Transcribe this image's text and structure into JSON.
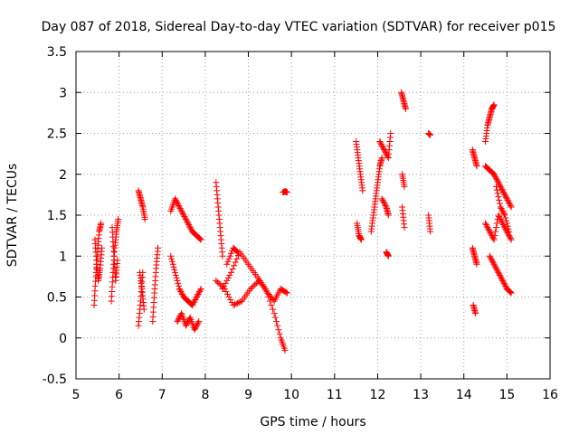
{
  "chart_data": {
    "type": "scatter",
    "title": "Day 087 of 2018, Sidereal Day-to-day VTEC variation (SDTVAR) for receiver p015",
    "xlabel": "GPS time / hours",
    "ylabel": "SDTVAR / TECUs",
    "xlim": [
      5,
      16
    ],
    "ylim": [
      -0.5,
      3.5
    ],
    "xticks": [
      "5",
      "6",
      "7",
      "8",
      "9",
      "10",
      "11",
      "12",
      "13",
      "14",
      "15",
      "16"
    ],
    "yticks": [
      "-0.5",
      "0",
      "0.5",
      "1",
      "1.5",
      "2",
      "2.5",
      "3",
      "3.5"
    ],
    "grid": true,
    "marker": "+",
    "series_color": "#ff0000",
    "segments": [
      {
        "x": [
          5.42,
          5.46,
          5.5,
          5.54,
          5.58
        ],
        "y": [
          0.4,
          0.75,
          1.05,
          1.3,
          1.4
        ]
      },
      {
        "x": [
          5.44,
          5.48,
          5.52,
          5.56,
          5.6
        ],
        "y": [
          1.2,
          0.9,
          0.7,
          0.85,
          1.1
        ]
      },
      {
        "x": [
          5.82,
          5.86,
          5.9,
          5.94,
          5.98
        ],
        "y": [
          0.45,
          0.8,
          1.1,
          1.3,
          1.45
        ]
      },
      {
        "x": [
          5.84,
          5.88,
          5.92,
          5.96
        ],
        "y": [
          1.35,
          1.0,
          0.7,
          0.95
        ]
      },
      {
        "x": [
          6.45,
          6.5,
          6.55,
          6.6
        ],
        "y": [
          1.8,
          1.7,
          1.6,
          1.45
        ]
      },
      {
        "x": [
          6.45,
          6.5,
          6.55
        ],
        "y": [
          0.15,
          0.45,
          0.8
        ]
      },
      {
        "x": [
          6.48,
          6.53,
          6.58
        ],
        "y": [
          0.8,
          0.6,
          0.35
        ]
      },
      {
        "x": [
          6.78,
          6.82,
          6.86,
          6.9
        ],
        "y": [
          0.2,
          0.55,
          0.85,
          1.1
        ]
      },
      {
        "x": [
          7.2,
          7.3,
          7.4,
          7.5,
          7.6,
          7.7,
          7.8,
          7.9
        ],
        "y": [
          1.55,
          1.7,
          1.6,
          1.5,
          1.4,
          1.3,
          1.25,
          1.2
        ]
      },
      {
        "x": [
          7.2,
          7.3,
          7.4,
          7.5,
          7.6,
          7.7,
          7.8,
          7.9
        ],
        "y": [
          1.0,
          0.8,
          0.6,
          0.5,
          0.45,
          0.4,
          0.5,
          0.6
        ]
      },
      {
        "x": [
          7.35,
          7.45,
          7.55,
          7.65,
          7.75,
          7.85
        ],
        "y": [
          0.2,
          0.3,
          0.15,
          0.25,
          0.1,
          0.2
        ]
      },
      {
        "x": [
          8.25,
          8.3,
          8.35,
          8.4
        ],
        "y": [
          1.9,
          1.6,
          1.3,
          1.0
        ]
      },
      {
        "x": [
          8.25,
          8.45,
          8.65,
          8.85,
          9.05,
          9.25,
          9.45,
          9.6,
          9.75,
          9.9
        ],
        "y": [
          0.7,
          0.6,
          0.4,
          0.45,
          0.6,
          0.7,
          0.55,
          0.45,
          0.6,
          0.55
        ]
      },
      {
        "x": [
          8.4,
          8.6,
          8.8,
          9.0,
          9.2,
          9.4,
          9.6,
          9.75,
          9.85
        ],
        "y": [
          0.6,
          0.8,
          1.05,
          0.9,
          0.75,
          0.6,
          0.3,
          0.0,
          -0.15
        ]
      },
      {
        "x": [
          8.5,
          8.65,
          8.75
        ],
        "y": [
          0.9,
          1.1,
          1.05
        ]
      },
      {
        "x": [
          9.8,
          9.85,
          9.9
        ],
        "y": [
          1.78,
          1.79,
          1.78
        ]
      },
      {
        "x": [
          11.5,
          11.55,
          11.6,
          11.65
        ],
        "y": [
          2.4,
          2.2,
          2.0,
          1.8
        ]
      },
      {
        "x": [
          11.52,
          11.57,
          11.62
        ],
        "y": [
          1.4,
          1.25,
          1.2
        ]
      },
      {
        "x": [
          11.85,
          11.9,
          11.95,
          12.0,
          12.05,
          12.1
        ],
        "y": [
          1.3,
          1.5,
          1.7,
          1.9,
          2.1,
          2.2
        ]
      },
      {
        "x": [
          12.05,
          12.15,
          12.25,
          12.3
        ],
        "y": [
          2.4,
          2.3,
          2.2,
          2.5
        ]
      },
      {
        "x": [
          12.1,
          12.2,
          12.25
        ],
        "y": [
          1.7,
          1.6,
          1.5
        ]
      },
      {
        "x": [
          12.2,
          12.25
        ],
        "y": [
          1.05,
          1.0
        ]
      },
      {
        "x": [
          12.55,
          12.6,
          12.65
        ],
        "y": [
          3.0,
          2.9,
          2.8
        ]
      },
      {
        "x": [
          12.57,
          12.62
        ],
        "y": [
          2.0,
          1.85
        ]
      },
      {
        "x": [
          12.57,
          12.62
        ],
        "y": [
          1.6,
          1.35
        ]
      },
      {
        "x": [
          13.18,
          13.22
        ],
        "y": [
          2.5,
          2.48
        ]
      },
      {
        "x": [
          13.18,
          13.22
        ],
        "y": [
          1.5,
          1.3
        ]
      },
      {
        "x": [
          14.2,
          14.25,
          14.3
        ],
        "y": [
          2.3,
          2.2,
          2.1
        ]
      },
      {
        "x": [
          14.2,
          14.25,
          14.3
        ],
        "y": [
          1.1,
          1.0,
          0.9
        ]
      },
      {
        "x": [
          14.22,
          14.27
        ],
        "y": [
          0.4,
          0.3
        ]
      },
      {
        "x": [
          14.5,
          14.55,
          14.6,
          14.65,
          14.7
        ],
        "y": [
          2.4,
          2.6,
          2.7,
          2.8,
          2.85
        ]
      },
      {
        "x": [
          14.5,
          14.6,
          14.7,
          14.8,
          14.9,
          15.0,
          15.1
        ],
        "y": [
          2.1,
          2.05,
          2.0,
          1.9,
          1.8,
          1.7,
          1.6
        ]
      },
      {
        "x": [
          14.5,
          14.6,
          14.7,
          14.8,
          14.9,
          15.0,
          15.1
        ],
        "y": [
          1.4,
          1.3,
          1.2,
          1.5,
          1.4,
          1.3,
          1.2
        ]
      },
      {
        "x": [
          14.6,
          14.7,
          14.8,
          14.9,
          15.0,
          15.1
        ],
        "y": [
          1.0,
          0.9,
          0.8,
          0.7,
          0.6,
          0.55
        ]
      },
      {
        "x": [
          14.75,
          14.85,
          14.95,
          15.05
        ],
        "y": [
          1.85,
          1.6,
          1.5,
          1.3
        ]
      }
    ]
  }
}
